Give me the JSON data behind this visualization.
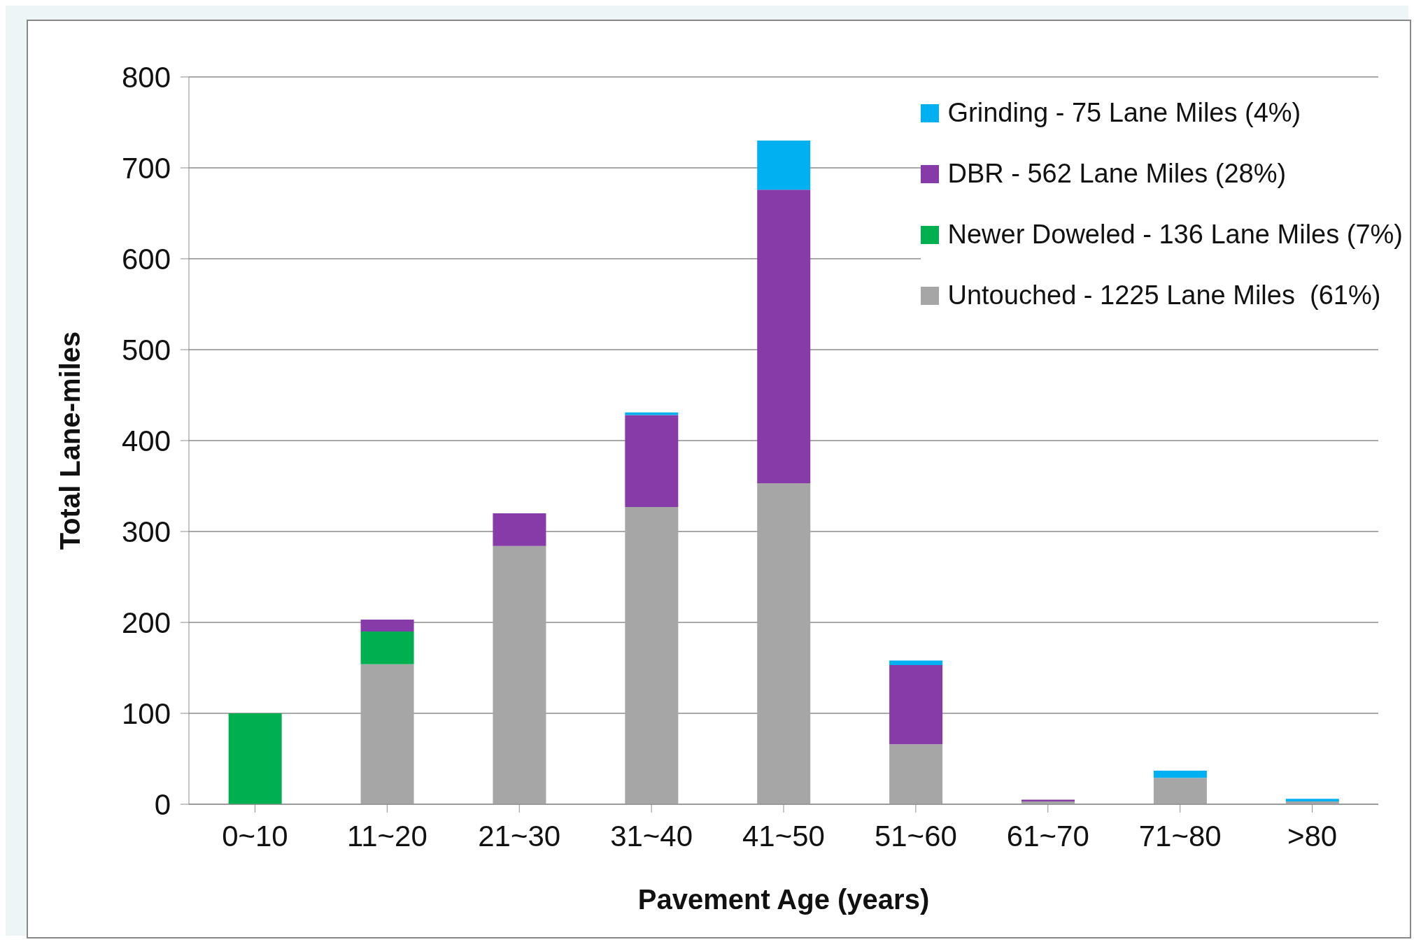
{
  "chart_data": {
    "type": "bar",
    "xlabel": "Pavement Age (years)",
    "ylabel": "Total Lane-miles",
    "categories": [
      "0~10",
      "11~20",
      "21~30",
      "31~40",
      "41~50",
      "51~60",
      "61~70",
      "71~80",
      ">80"
    ],
    "stacked": true,
    "series": [
      {
        "name": "Untouched - 1225 Lane Miles  (61%)",
        "color": "#a6a6a6",
        "values": [
          0,
          154,
          284,
          327,
          353,
          66,
          3,
          29,
          3
        ]
      },
      {
        "name": "Newer Doweled - 136 Lane Miles (7%)",
        "color": "#00b050",
        "values": [
          100,
          36,
          0,
          0,
          0,
          0,
          0,
          0,
          0
        ]
      },
      {
        "name": "DBR - 562 Lane Miles (28%)",
        "color": "#873ba8",
        "values": [
          0,
          13,
          36,
          101,
          323,
          87,
          2,
          0,
          0
        ]
      },
      {
        "name": "Grinding - 75 Lane Miles (4%)",
        "color": "#00b0f0",
        "values": [
          0,
          0,
          0,
          3,
          54,
          5,
          0,
          8,
          3
        ]
      }
    ],
    "ylim": [
      0,
      800
    ],
    "yticks": [
      0,
      100,
      200,
      300,
      400,
      500,
      600,
      700,
      800
    ],
    "grid": "y",
    "legend": "top right"
  }
}
